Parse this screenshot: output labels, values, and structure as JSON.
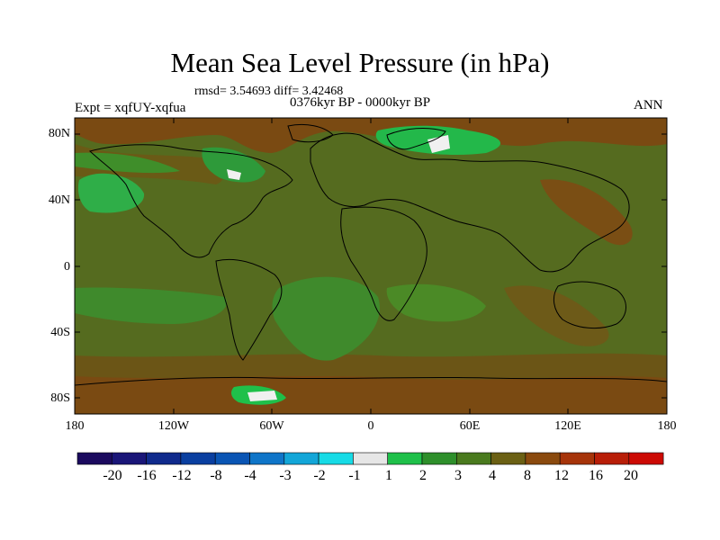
{
  "title": "Mean Sea Level Pressure (in hPa)",
  "stats": "rmsd= 3.54693 diff= 3.42468",
  "period": "0376kyr BP - 0000kyr BP",
  "expt": "Expt = xqfUY-xqfua",
  "season": "ANN",
  "lat_ticks": [
    "80N",
    "40N",
    "0",
    "40S",
    "80S"
  ],
  "lon_ticks": [
    "180",
    "120W",
    "60W",
    "0",
    "60E",
    "120E",
    "180"
  ],
  "colorbar": {
    "labels": [
      "-20",
      "-16",
      "-12",
      "-8",
      "-4",
      "-3",
      "-2",
      "-1",
      "1",
      "2",
      "3",
      "4",
      "8",
      "12",
      "16",
      "20"
    ],
    "colors": [
      "#1b0a5e",
      "#1a1678",
      "#102a8c",
      "#0a3fa0",
      "#0a55b4",
      "#0f75c8",
      "#13a6d8",
      "#17dbe6",
      "#e6e6e6",
      "#1fc04a",
      "#2e8f2b",
      "#4a7a1e",
      "#6b6014",
      "#8a4a0e",
      "#a6340a",
      "#b81e08",
      "#cc0a04"
    ]
  },
  "colors": {
    "background_field": "#5a6a1c",
    "land_outline": "#000000"
  }
}
